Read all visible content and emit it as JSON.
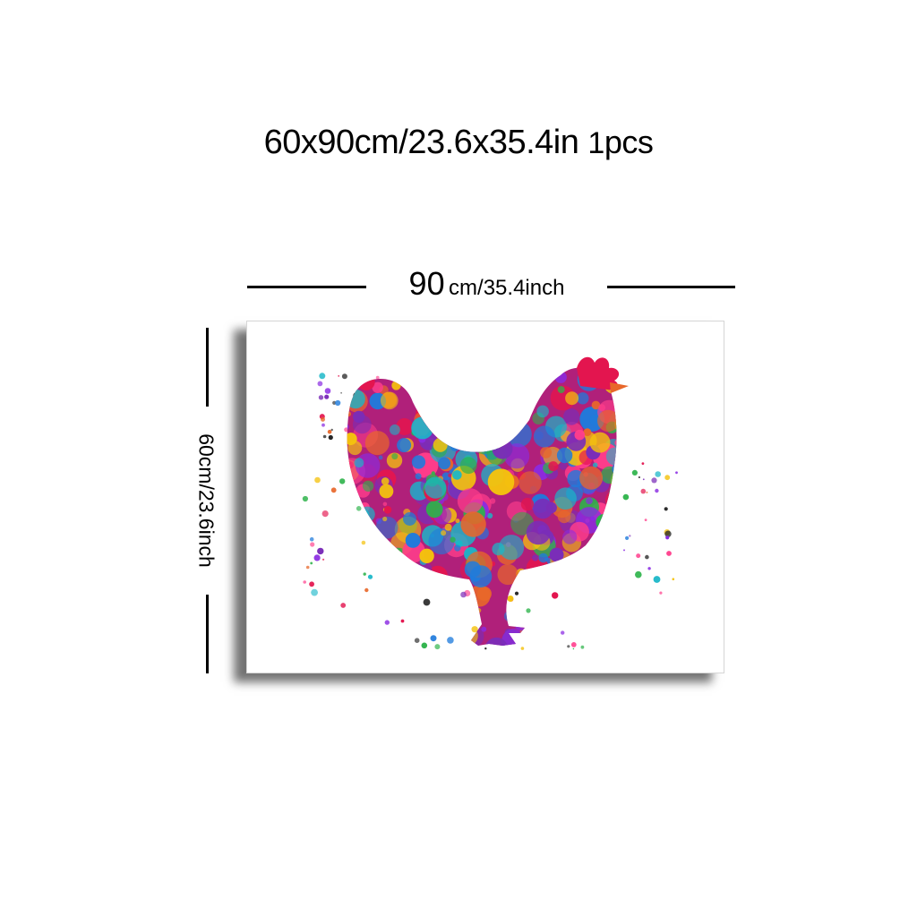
{
  "header": {
    "size_text": "60x90cm/23.6x35.4in",
    "qty_num": "1",
    "qty_unit": "pcs"
  },
  "dimensions": {
    "width_num": "90",
    "width_unit": "cm/35.4inch",
    "height_text": "60cm/23.6inch"
  },
  "artwork": {
    "subject": "rooster-icon",
    "palette": [
      "#e3154f",
      "#8a2be2",
      "#1f7bdc",
      "#f4c20d",
      "#19b7c8",
      "#7a2db8",
      "#e8672a",
      "#2db34a",
      "#ff3d8b"
    ]
  }
}
